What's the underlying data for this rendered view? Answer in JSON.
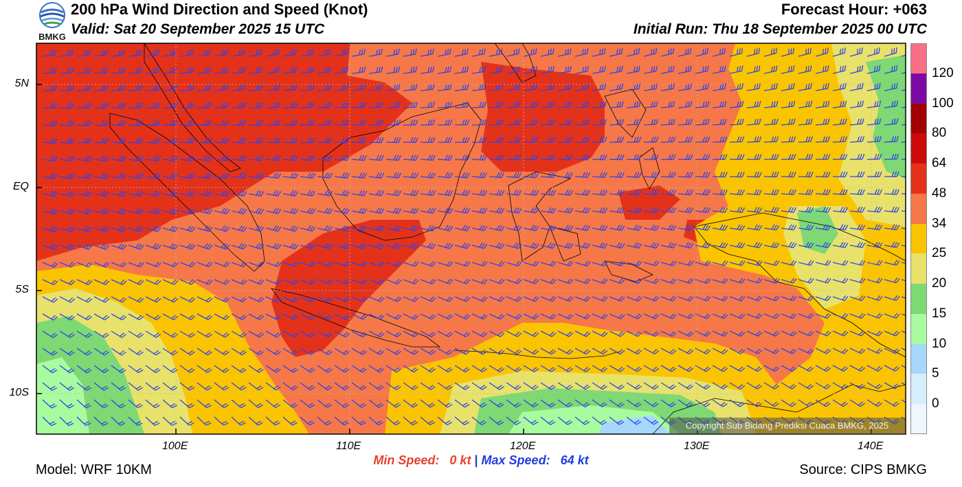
{
  "header": {
    "title": "200 hPa Wind Direction and Speed (Knot)",
    "valid": "Valid: Sat 20 September 2025 15 UTC",
    "forecast_hour": "Forecast Hour: +063",
    "initial_run": "Initial Run: Thu 18 September 2025 00 UTC",
    "logo_text": "BMKG"
  },
  "map": {
    "lat_labels": [
      "5N",
      "EQ",
      "5S",
      "10S"
    ],
    "lon_labels": [
      "100E",
      "110E",
      "120E",
      "130E",
      "140E"
    ],
    "copyright": "Copyright Sub Bidang Prediksi Cuaca BMKG, 2025",
    "barb_color": "#2f45e6"
  },
  "speeds": {
    "min_label": "Min Speed:",
    "min_value": "0 kt",
    "separator": "|",
    "max_label": "Max Speed:",
    "max_value": "64 kt"
  },
  "footer": {
    "model": "Model: WRF 10KM",
    "source": "Source: CIPS BMKG"
  },
  "colorbar": {
    "levels": [
      "120",
      "100",
      "80",
      "64",
      "48",
      "34",
      "25",
      "20",
      "15",
      "10",
      "5",
      "0"
    ],
    "colors": [
      "#fb6f86",
      "#7b0aa4",
      "#a30000",
      "#cc0a0a",
      "#e4321a",
      "#f67848",
      "#fbc400",
      "#e8e26a",
      "#7ed873",
      "#a9fba0",
      "#a7d8fb",
      "#d4eefc",
      "#eef7fd"
    ]
  }
}
